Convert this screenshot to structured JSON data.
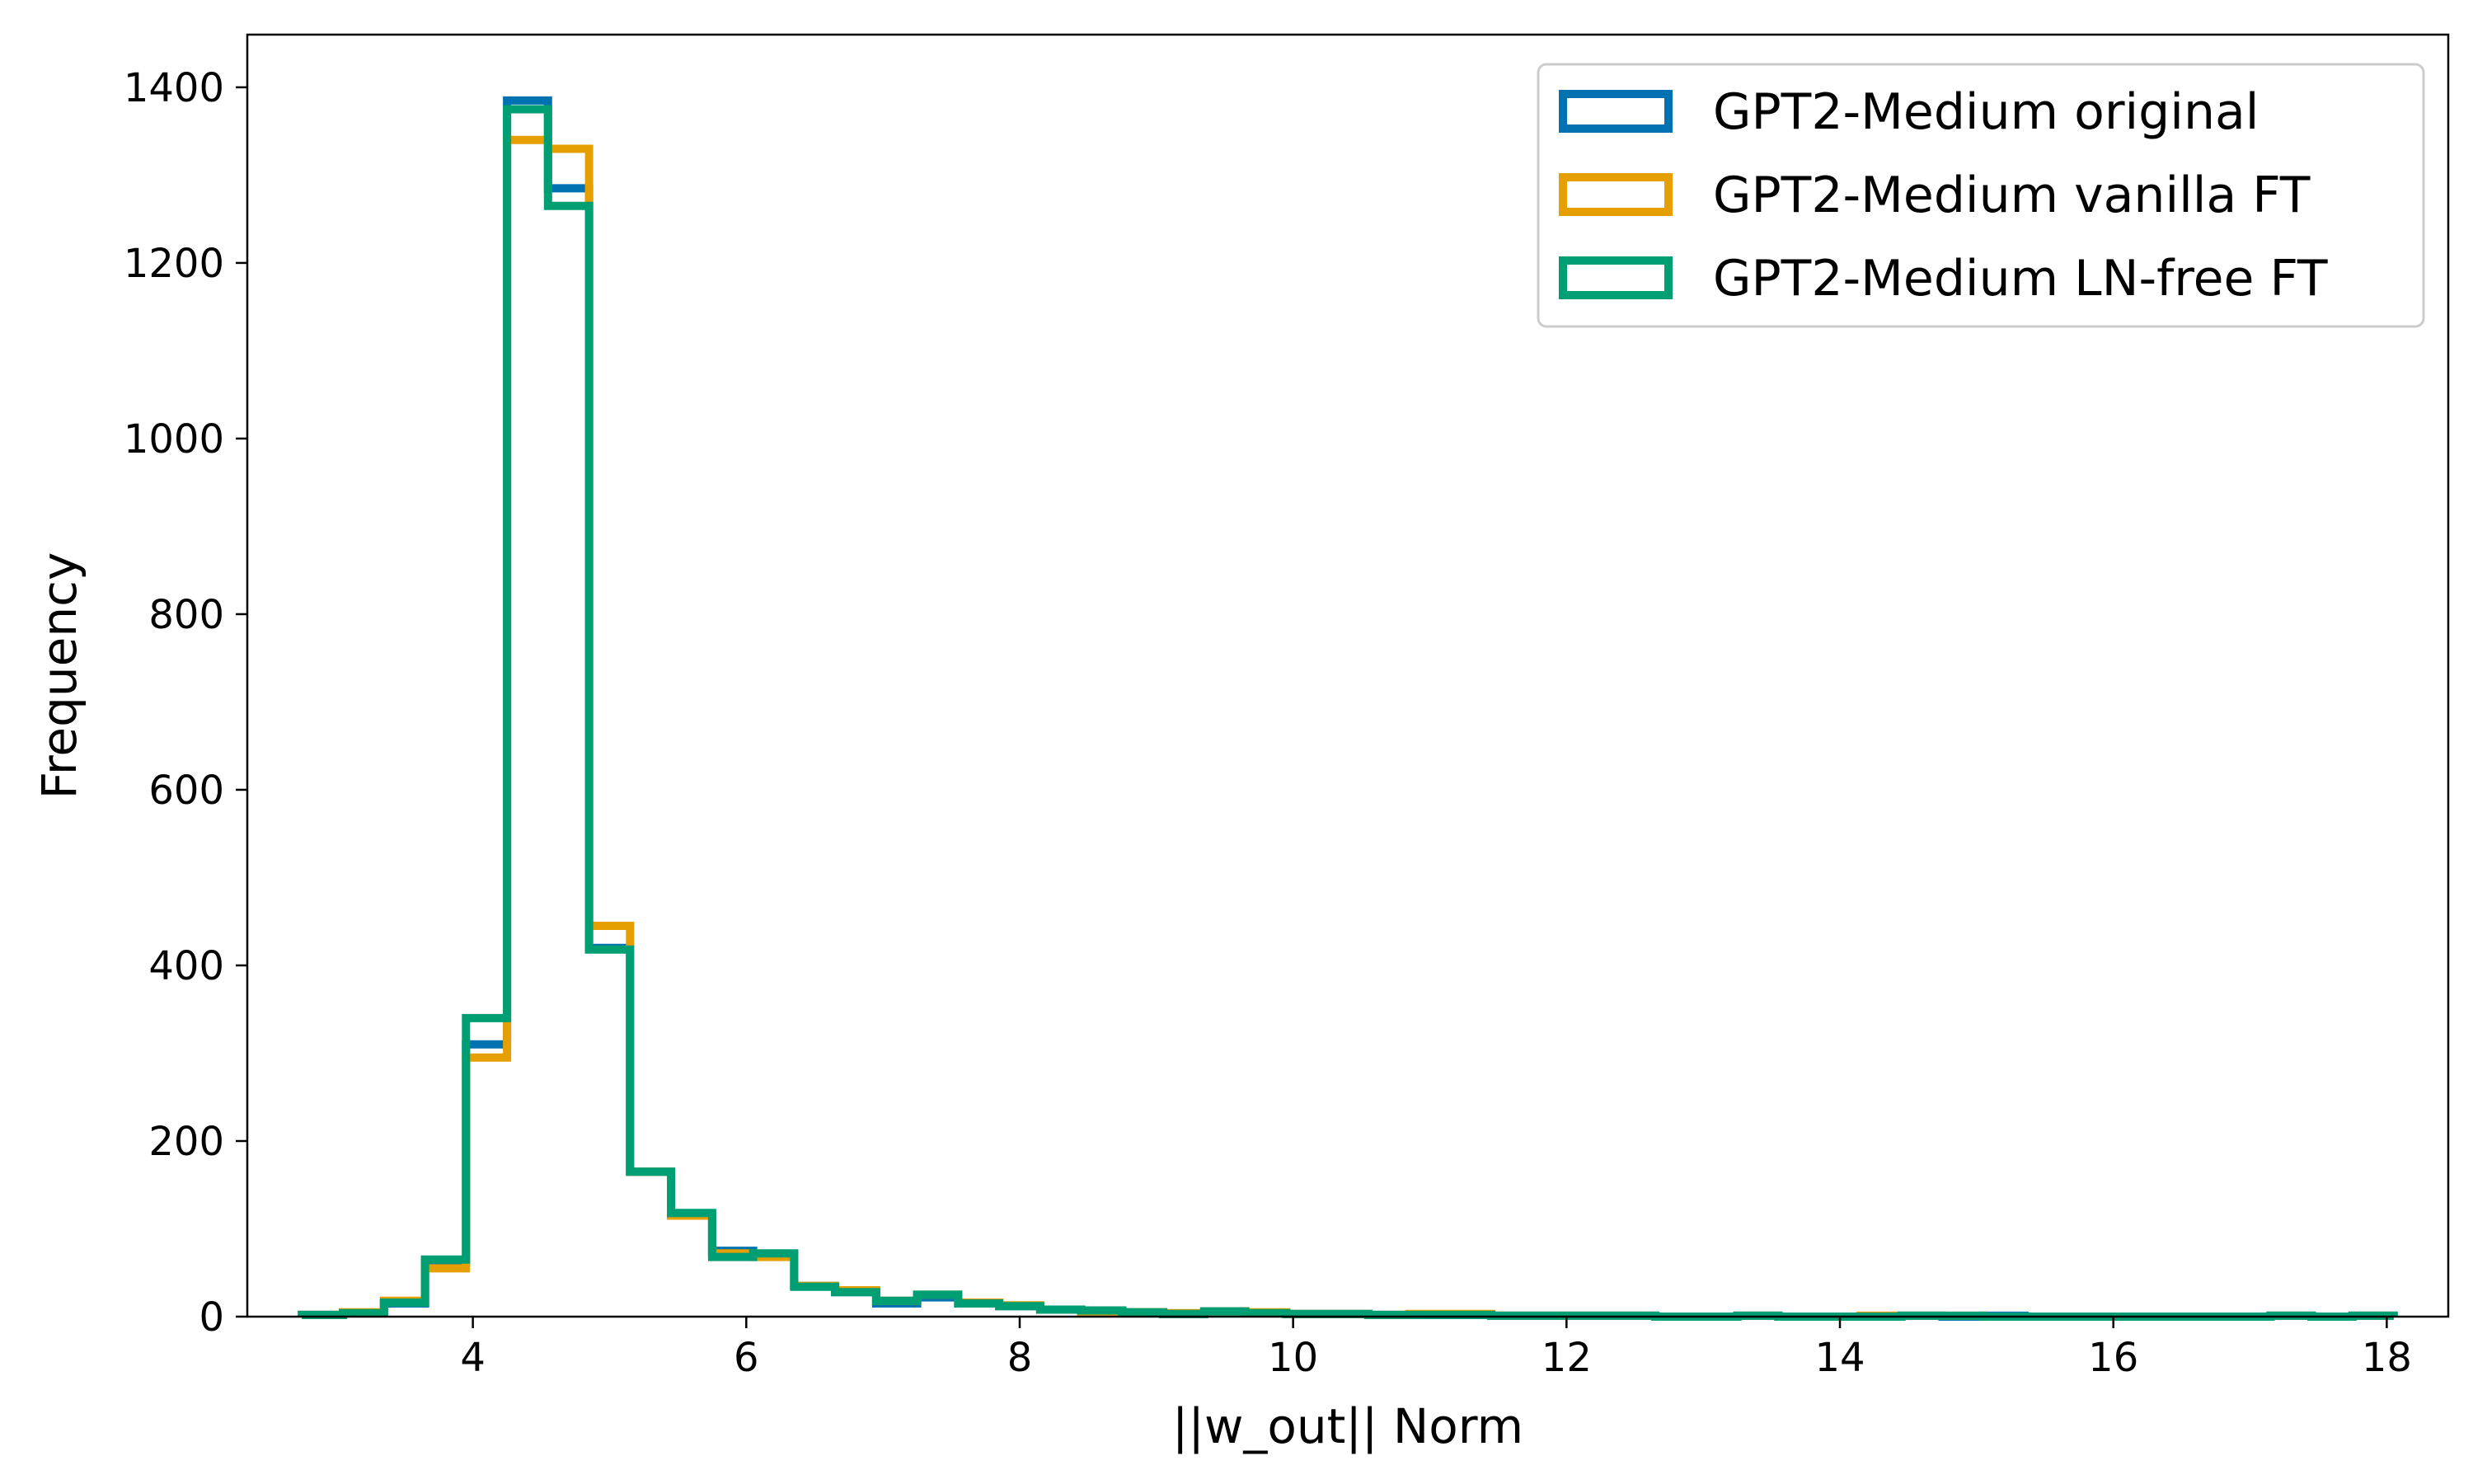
{
  "chart_data": {
    "type": "histogram",
    "title": "",
    "xlabel": "||w_out|| Norm",
    "ylabel": "Frequency",
    "xlim": [
      2.35,
      18.45
    ],
    "ylim": [
      0,
      1460
    ],
    "xticks": [
      4,
      6,
      8,
      10,
      12,
      14,
      16,
      18
    ],
    "yticks": [
      0,
      200,
      400,
      600,
      800,
      1000,
      1200,
      1400
    ],
    "grid": false,
    "legend": {
      "placement": "top-right"
    },
    "bin_edges": [
      2.75,
      3.05,
      3.35,
      3.65,
      3.95,
      4.25,
      4.55,
      4.85,
      5.15,
      5.45,
      5.75,
      6.05,
      6.35,
      6.65,
      6.95,
      7.25,
      7.55,
      7.85,
      8.15,
      8.45,
      8.75,
      9.05,
      9.35,
      9.65,
      9.95,
      10.25,
      10.55,
      10.85,
      11.15,
      11.45,
      11.75,
      12.05,
      12.35,
      12.65,
      12.95,
      13.25,
      13.55,
      13.85,
      14.15,
      14.45,
      14.75,
      15.05,
      15.35,
      15.65,
      15.95,
      16.25,
      16.55,
      16.85,
      17.15,
      17.45,
      17.75,
      18.05
    ],
    "series": [
      {
        "name": "GPT2-Medium original",
        "color": "#0072B2",
        "values": [
          2,
          4,
          15,
          62,
          310,
          1385,
          1285,
          420,
          165,
          115,
          75,
          70,
          35,
          28,
          15,
          22,
          15,
          12,
          8,
          6,
          5,
          3,
          6,
          4,
          3,
          3,
          2,
          2,
          2,
          1,
          1,
          1,
          1,
          0,
          0,
          1,
          0,
          0,
          0,
          1,
          0,
          1,
          0,
          0,
          0,
          0,
          0,
          0,
          1,
          0,
          1
        ]
      },
      {
        "name": "GPT2-Medium vanilla FT",
        "color": "#E69F00",
        "values": [
          2,
          5,
          18,
          55,
          295,
          1340,
          1330,
          445,
          165,
          115,
          72,
          68,
          35,
          30,
          18,
          25,
          16,
          13,
          8,
          6,
          5,
          4,
          6,
          5,
          3,
          3,
          2,
          3,
          3,
          1,
          1,
          1,
          1,
          0,
          0,
          1,
          0,
          0,
          1,
          1,
          1,
          0,
          0,
          0,
          0,
          0,
          0,
          0,
          1,
          0,
          1
        ]
      },
      {
        "name": "GPT2-Medium LN-free FT",
        "color": "#009E73",
        "values": [
          2,
          4,
          16,
          65,
          340,
          1375,
          1265,
          418,
          165,
          118,
          68,
          72,
          34,
          28,
          18,
          25,
          15,
          12,
          8,
          7,
          5,
          3,
          6,
          4,
          3,
          3,
          2,
          2,
          2,
          1,
          1,
          1,
          1,
          0,
          0,
          1,
          0,
          0,
          0,
          1,
          1,
          0,
          0,
          0,
          0,
          0,
          0,
          0,
          1,
          0,
          1
        ]
      }
    ]
  }
}
